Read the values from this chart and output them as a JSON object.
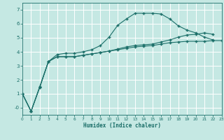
{
  "xlabel": "Humidex (Indice chaleur)",
  "background_color": "#c5e8e3",
  "grid_color": "#ffffff",
  "line_color": "#1a6e68",
  "xlim": [
    0,
    23
  ],
  "ylim": [
    -0.5,
    7.5
  ],
  "xticks": [
    0,
    1,
    2,
    3,
    4,
    5,
    6,
    7,
    8,
    9,
    10,
    11,
    12,
    13,
    14,
    15,
    16,
    17,
    18,
    19,
    20,
    21,
    22,
    23
  ],
  "yticks": [
    0,
    1,
    2,
    3,
    4,
    5,
    6,
    7
  ],
  "ytick_labels": [
    "-0",
    "1",
    "2",
    "3",
    "4",
    "5",
    "6",
    "7"
  ],
  "s1_x": [
    0,
    1,
    2,
    3,
    4,
    5,
    6,
    7,
    8,
    9,
    10,
    11,
    12,
    13,
    14,
    15,
    16,
    17,
    18,
    19,
    20,
    21,
    22
  ],
  "s1_y": [
    1.0,
    -0.25,
    1.45,
    3.3,
    3.8,
    3.9,
    3.9,
    4.0,
    4.15,
    4.45,
    5.05,
    5.9,
    6.35,
    6.75,
    6.75,
    6.75,
    6.7,
    6.35,
    5.85,
    5.55,
    5.35,
    5.05,
    4.85
  ],
  "s2_x": [
    0,
    1,
    2,
    3,
    4,
    5,
    6,
    7,
    8,
    9,
    10,
    11,
    12,
    13,
    14,
    15,
    16,
    17,
    18,
    19,
    20,
    21,
    22,
    23
  ],
  "s2_y": [
    1.0,
    -0.25,
    1.5,
    3.3,
    3.65,
    3.65,
    3.65,
    3.75,
    3.85,
    3.95,
    4.05,
    4.15,
    4.25,
    4.35,
    4.4,
    4.45,
    4.55,
    4.65,
    4.7,
    4.75,
    4.75,
    4.75,
    4.8,
    4.8
  ],
  "s3_x": [
    0,
    1,
    2,
    3,
    4,
    5,
    6,
    7,
    8,
    9,
    10,
    11,
    12,
    13,
    14,
    15,
    16,
    17,
    18,
    19,
    20,
    21,
    22
  ],
  "s3_y": [
    1.0,
    -0.25,
    1.5,
    3.3,
    3.65,
    3.65,
    3.65,
    3.75,
    3.85,
    3.95,
    4.05,
    4.2,
    4.35,
    4.45,
    4.5,
    4.55,
    4.7,
    4.85,
    5.05,
    5.2,
    5.25,
    5.35,
    5.25
  ]
}
